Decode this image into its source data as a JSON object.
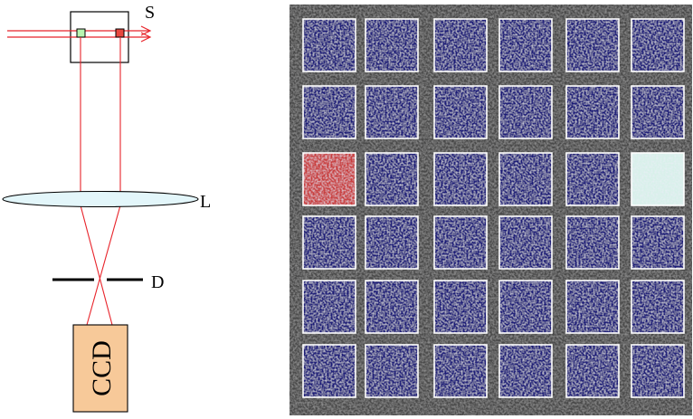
{
  "optical_schematic": {
    "labels": {
      "source": "S",
      "lens": "L",
      "diaphragm": "D",
      "detector": "CCD"
    },
    "colors": {
      "beam": "#e8232a",
      "source_marker_green": "#b8f5b0",
      "source_marker_red": "#e8473e",
      "lens_fill": "#e3f6fa",
      "ccd_fill": "#f7c999"
    }
  },
  "speckle_image": {
    "grid": {
      "rows": 6,
      "columns": 6
    },
    "highlighted_cells": [
      {
        "row": 3,
        "column": 1,
        "tint": "red"
      },
      {
        "row": 3,
        "column": 6,
        "tint": "cyan"
      }
    ],
    "colors": {
      "background": "#4a4a4a",
      "cell_tint": "#1e1e78",
      "red_tint": "#c83c3c",
      "cyan_tint": "#d8f0ea",
      "cell_border": "#ffffff"
    }
  }
}
